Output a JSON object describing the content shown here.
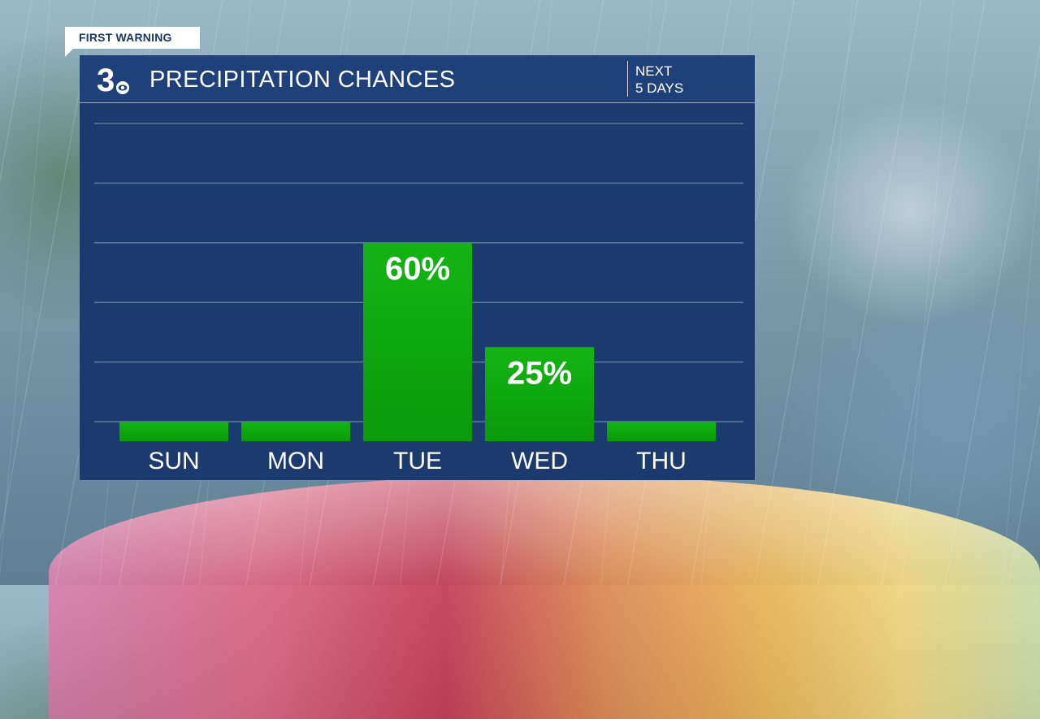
{
  "badge": {
    "label": "FIRST WARNING"
  },
  "logo": {
    "text": "3"
  },
  "header": {
    "title": "PRECIPITATION CHANCES",
    "subtitle_line1": "NEXT",
    "subtitle_line2": "5 DAYS"
  },
  "colors": {
    "panel": "#1b3a6e",
    "header": "#1f4179",
    "bar": "#0ea50e",
    "grid": "#5f78a0",
    "text": "#ffffff"
  },
  "chart_data": {
    "type": "bar",
    "categories": [
      "SUN",
      "MON",
      "TUE",
      "WED",
      "THU"
    ],
    "values": [
      0,
      0,
      60,
      25,
      0
    ],
    "labels": [
      "",
      "",
      "60%",
      "25%",
      ""
    ],
    "ylim": [
      0,
      100
    ],
    "grid": true
  }
}
